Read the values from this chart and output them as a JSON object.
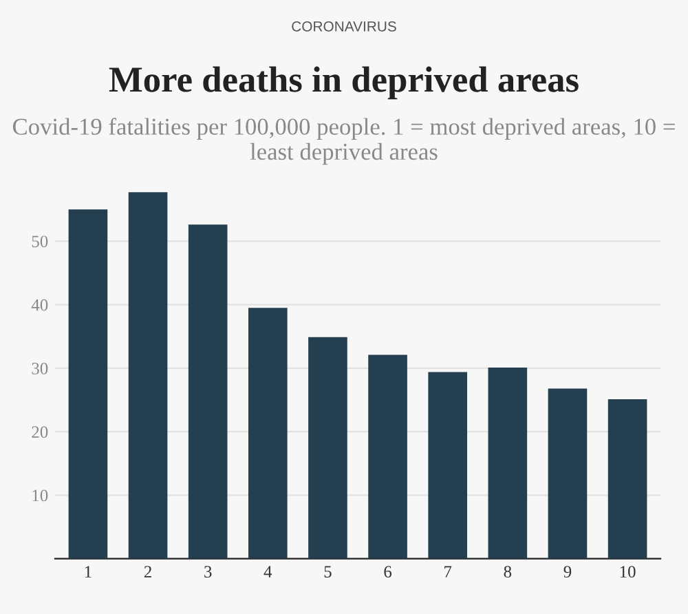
{
  "chart_data": {
    "type": "bar",
    "title": "More deaths in deprived areas",
    "subtitle": "Covid-19 fatalities per 100,000 people. 1 = most deprived areas, 10 = least deprived areas",
    "annotations": [
      "CORONAVIRUS"
    ],
    "categories": [
      "1",
      "2",
      "3",
      "4",
      "5",
      "6",
      "7",
      "8",
      "9",
      "10"
    ],
    "values": [
      55.0,
      57.7,
      52.6,
      39.5,
      34.9,
      32.1,
      29.4,
      30.1,
      26.8,
      25.1
    ],
    "color": "#243f4f",
    "ylim": [
      0,
      58
    ],
    "yticks": [
      10,
      20,
      30,
      40,
      50
    ],
    "grid": "y"
  }
}
